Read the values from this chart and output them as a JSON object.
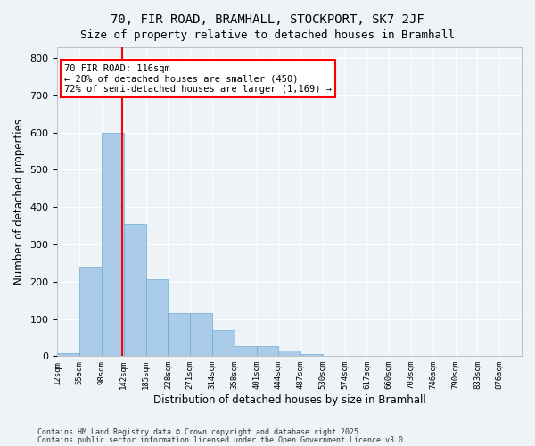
{
  "title1": "70, FIR ROAD, BRAMHALL, STOCKPORT, SK7 2JF",
  "title2": "Size of property relative to detached houses in Bramhall",
  "xlabel": "Distribution of detached houses by size in Bramhall",
  "ylabel": "Number of detached properties",
  "tick_labels": [
    "12sqm",
    "55sqm",
    "98sqm",
    "142sqm",
    "185sqm",
    "228sqm",
    "271sqm",
    "314sqm",
    "358sqm",
    "401sqm",
    "444sqm",
    "487sqm",
    "530sqm",
    "574sqm",
    "617sqm",
    "660sqm",
    "703sqm",
    "746sqm",
    "790sqm",
    "833sqm",
    "876sqm"
  ],
  "bar_values": [
    8,
    240,
    600,
    355,
    207,
    116,
    116,
    70,
    28,
    28,
    14,
    6,
    0,
    0,
    0,
    0,
    0,
    0,
    0,
    0
  ],
  "bar_color": "#aacce8",
  "bar_edge_color": "#6aaad4",
  "annotation_title": "70 FIR ROAD: 116sqm",
  "annotation_line1": "← 28% of detached houses are smaller (450)",
  "annotation_line2": "72% of semi-detached houses are larger (1,169) →",
  "annotation_box_color": "white",
  "annotation_box_edge_color": "red",
  "vline_color": "red",
  "background_color": "#eef3f8",
  "footer1": "Contains HM Land Registry data © Crown copyright and database right 2025.",
  "footer2": "Contains public sector information licensed under the Open Government Licence v3.0.",
  "ylim": [
    0,
    830
  ],
  "yticks": [
    0,
    100,
    200,
    300,
    400,
    500,
    600,
    700,
    800
  ],
  "vline_pos": 2.41
}
